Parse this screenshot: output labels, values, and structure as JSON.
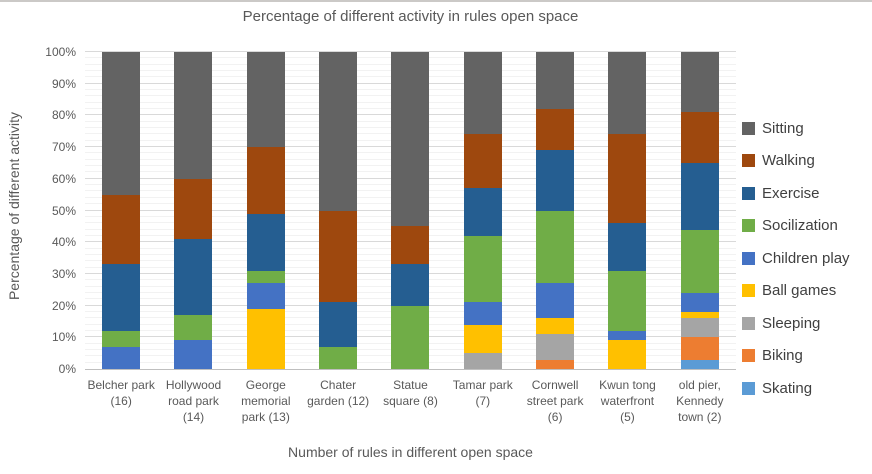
{
  "title": "Percentage of different activity in rules open space",
  "y_axis_title": "Percentage of different activity",
  "x_axis_title": "Number of rules in different open space",
  "y_ticks": [
    "100%",
    "90%",
    "80%",
    "70%",
    "60%",
    "50%",
    "40%",
    "30%",
    "20%",
    "10%",
    "0%"
  ],
  "legend_items": [
    "Sitting",
    "Walking",
    "Exercise",
    "Socilization",
    "Children play",
    "Ball games",
    "Sleeping",
    "Biking",
    "Skating"
  ],
  "chart_data": {
    "type": "bar",
    "stacked": true,
    "title": "Percentage of different activity in rules open space",
    "xlabel": "Number of rules in different open space",
    "ylabel": "Percentage of different activity",
    "ylim": [
      0,
      100
    ],
    "y_tick_format": "percent",
    "grid": "horizontal, major every 10% with faint minor lines",
    "legend_position": "right",
    "categories": [
      "Belcher park (16)",
      "Hollywood road park (14)",
      "George memorial park (13)",
      "Chater garden (12)",
      "Statue square (8)",
      "Tamar park (7)",
      "Cornwell street park (6)",
      "Kwun tong waterfront (5)",
      "old pier, Kennedy town (2)"
    ],
    "series": [
      {
        "name": "Skating",
        "color": "#5B9BD5",
        "values": [
          0,
          0,
          0,
          0,
          0,
          0,
          0,
          0,
          3
        ]
      },
      {
        "name": "Biking",
        "color": "#ED7D31",
        "values": [
          0,
          0,
          0,
          0,
          0,
          0,
          3,
          0,
          7
        ]
      },
      {
        "name": "Sleeping",
        "color": "#A5A5A5",
        "values": [
          0,
          0,
          0,
          0,
          0,
          5,
          8,
          0,
          6
        ]
      },
      {
        "name": "Ball games",
        "color": "#FFC000",
        "values": [
          0,
          0,
          19,
          0,
          0,
          9,
          5,
          9,
          2
        ]
      },
      {
        "name": "Children play",
        "color": "#4472C4",
        "values": [
          7,
          9,
          8,
          0,
          0,
          7,
          11,
          3,
          6
        ]
      },
      {
        "name": "Socilization",
        "color": "#70AD47",
        "values": [
          5,
          8,
          4,
          7,
          20,
          21,
          23,
          19,
          20
        ]
      },
      {
        "name": "Exercise",
        "color": "#255E91",
        "values": [
          21,
          24,
          18,
          14,
          13,
          15,
          19,
          15,
          21
        ]
      },
      {
        "name": "Walking",
        "color": "#9E480E",
        "values": [
          22,
          19,
          21,
          29,
          12,
          17,
          13,
          28,
          16
        ]
      },
      {
        "name": "Sitting",
        "color": "#636363",
        "values": [
          45,
          40,
          30,
          50,
          55,
          26,
          18,
          26,
          19
        ]
      }
    ]
  }
}
